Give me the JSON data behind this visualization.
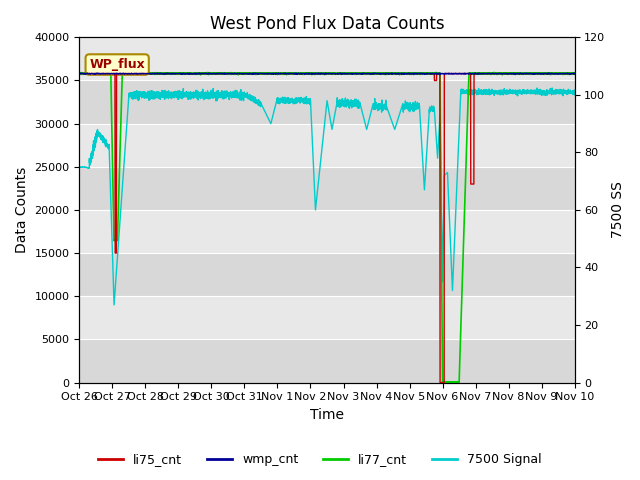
{
  "title": "West Pond Flux Data Counts",
  "ylabel_left": "Data Counts",
  "ylabel_right": "7500 SS",
  "xlabel": "Time",
  "ylim_left": [
    0,
    40000
  ],
  "ylim_right": [
    0,
    120
  ],
  "bg_color": "#e8e8e8",
  "annotation_text": "WP_flux",
  "annotation_bg": "#ffffcc",
  "annotation_border": "#aa8800",
  "tick_labels": [
    "Oct 26",
    "Oct 27",
    "Oct 28",
    "Oct 29",
    "Oct 30",
    "Oct 31",
    "Nov 1",
    "Nov 2",
    "Nov 3",
    "Nov 4",
    "Nov 5",
    "Nov 6",
    "Nov 7",
    "Nov 8",
    "Nov 9",
    "Nov 10"
  ],
  "li75_color": "#cc0000",
  "wmp_color": "#000099",
  "li77_color": "#00cc00",
  "signal_color": "#00cccc",
  "title_fontsize": 12,
  "label_fontsize": 10,
  "tick_fontsize": 8
}
